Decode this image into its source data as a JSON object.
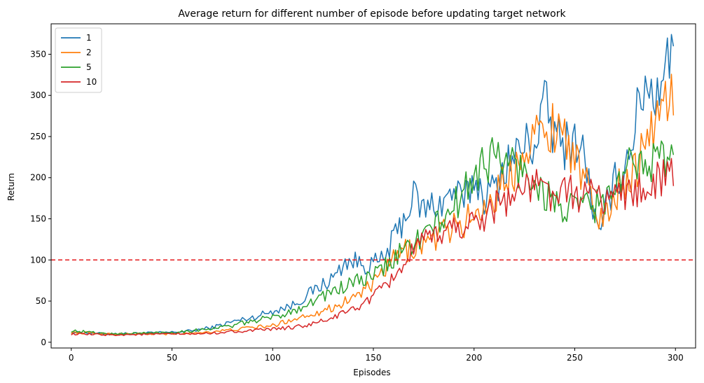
{
  "chart_data": {
    "type": "line",
    "title": "Average return for different number of episode before updating target network",
    "xlabel": "Episodes",
    "ylabel": "Return",
    "xlim": [
      -10,
      310
    ],
    "ylim": [
      -7,
      387
    ],
    "xticks": [
      0,
      50,
      100,
      150,
      200,
      250,
      300
    ],
    "yticks": [
      0,
      50,
      100,
      150,
      200,
      250,
      300,
      350
    ],
    "grid": false,
    "legend_position": "top-left",
    "reference_line": {
      "y": 100,
      "color": "#e41a1c",
      "style": "dashed"
    },
    "episodes": {
      "start": 0,
      "end": 299,
      "step": 1
    },
    "series": [
      {
        "name": "1",
        "color": "#1f77b4",
        "anchors": [
          [
            0,
            12
          ],
          [
            20,
            10
          ],
          [
            35,
            11
          ],
          [
            50,
            12
          ],
          [
            60,
            14
          ],
          [
            70,
            18
          ],
          [
            80,
            25
          ],
          [
            90,
            30
          ],
          [
            100,
            38
          ],
          [
            110,
            45
          ],
          [
            120,
            62
          ],
          [
            130,
            78
          ],
          [
            137,
            100
          ],
          [
            145,
            95
          ],
          [
            150,
            95
          ],
          [
            155,
            100
          ],
          [
            160,
            125
          ],
          [
            165,
            150
          ],
          [
            170,
            178
          ],
          [
            175,
            160
          ],
          [
            180,
            168
          ],
          [
            185,
            170
          ],
          [
            190,
            185
          ],
          [
            195,
            168
          ],
          [
            200,
            200
          ],
          [
            205,
            178
          ],
          [
            210,
            185
          ],
          [
            215,
            215
          ],
          [
            220,
            225
          ],
          [
            225,
            240
          ],
          [
            230,
            240
          ],
          [
            235,
            290
          ],
          [
            240,
            250
          ],
          [
            245,
            240
          ],
          [
            250,
            250
          ],
          [
            255,
            225
          ],
          [
            260,
            150
          ],
          [
            263,
            125
          ],
          [
            266,
            170
          ],
          [
            270,
            195
          ],
          [
            275,
            215
          ],
          [
            280,
            265
          ],
          [
            285,
            320
          ],
          [
            290,
            300
          ],
          [
            295,
            350
          ],
          [
            299,
            338
          ]
        ]
      },
      {
        "name": "2",
        "color": "#ff7f0e",
        "anchors": [
          [
            0,
            12
          ],
          [
            20,
            10
          ],
          [
            50,
            10
          ],
          [
            60,
            11
          ],
          [
            70,
            13
          ],
          [
            80,
            15
          ],
          [
            90,
            18
          ],
          [
            100,
            20
          ],
          [
            110,
            28
          ],
          [
            120,
            35
          ],
          [
            130,
            42
          ],
          [
            140,
            55
          ],
          [
            150,
            70
          ],
          [
            155,
            85
          ],
          [
            160,
            100
          ],
          [
            165,
            110
          ],
          [
            170,
            115
          ],
          [
            175,
            120
          ],
          [
            180,
            125
          ],
          [
            185,
            135
          ],
          [
            190,
            140
          ],
          [
            195,
            145
          ],
          [
            200,
            155
          ],
          [
            205,
            165
          ],
          [
            210,
            175
          ],
          [
            215,
            195
          ],
          [
            220,
            210
          ],
          [
            225,
            245
          ],
          [
            230,
            255
          ],
          [
            235,
            250
          ],
          [
            240,
            265
          ],
          [
            245,
            260
          ],
          [
            250,
            220
          ],
          [
            255,
            195
          ],
          [
            260,
            160
          ],
          [
            265,
            150
          ],
          [
            270,
            180
          ],
          [
            275,
            200
          ],
          [
            280,
            210
          ],
          [
            285,
            240
          ],
          [
            290,
            270
          ],
          [
            295,
            300
          ],
          [
            299,
            296
          ]
        ]
      },
      {
        "name": "5",
        "color": "#2ca02c",
        "anchors": [
          [
            0,
            14
          ],
          [
            20,
            10
          ],
          [
            50,
            12
          ],
          [
            60,
            14
          ],
          [
            70,
            17
          ],
          [
            80,
            20
          ],
          [
            90,
            26
          ],
          [
            100,
            30
          ],
          [
            110,
            38
          ],
          [
            120,
            50
          ],
          [
            130,
            62
          ],
          [
            140,
            72
          ],
          [
            150,
            80
          ],
          [
            155,
            90
          ],
          [
            160,
            100
          ],
          [
            165,
            112
          ],
          [
            170,
            122
          ],
          [
            175,
            130
          ],
          [
            180,
            140
          ],
          [
            185,
            150
          ],
          [
            190,
            165
          ],
          [
            195,
            180
          ],
          [
            200,
            205
          ],
          [
            205,
            220
          ],
          [
            210,
            225
          ],
          [
            215,
            220
          ],
          [
            220,
            215
          ],
          [
            225,
            205
          ],
          [
            230,
            200
          ],
          [
            235,
            180
          ],
          [
            240,
            170
          ],
          [
            245,
            160
          ],
          [
            250,
            160
          ],
          [
            255,
            170
          ],
          [
            260,
            165
          ],
          [
            265,
            175
          ],
          [
            270,
            180
          ],
          [
            275,
            205
          ],
          [
            280,
            220
          ],
          [
            285,
            235
          ],
          [
            290,
            215
          ],
          [
            295,
            230
          ],
          [
            299,
            215
          ]
        ]
      },
      {
        "name": "10",
        "color": "#d62728",
        "anchors": [
          [
            0,
            10
          ],
          [
            20,
            9
          ],
          [
            50,
            10
          ],
          [
            60,
            10
          ],
          [
            70,
            11
          ],
          [
            80,
            13
          ],
          [
            90,
            14
          ],
          [
            100,
            16
          ],
          [
            110,
            18
          ],
          [
            120,
            22
          ],
          [
            130,
            30
          ],
          [
            140,
            40
          ],
          [
            150,
            55
          ],
          [
            155,
            65
          ],
          [
            160,
            80
          ],
          [
            165,
            95
          ],
          [
            170,
            110
          ],
          [
            175,
            120
          ],
          [
            180,
            128
          ],
          [
            185,
            135
          ],
          [
            190,
            140
          ],
          [
            195,
            142
          ],
          [
            200,
            145
          ],
          [
            205,
            155
          ],
          [
            210,
            165
          ],
          [
            215,
            175
          ],
          [
            220,
            180
          ],
          [
            225,
            185
          ],
          [
            230,
            190
          ],
          [
            235,
            185
          ],
          [
            240,
            180
          ],
          [
            245,
            178
          ],
          [
            250,
            182
          ],
          [
            255,
            180
          ],
          [
            260,
            178
          ],
          [
            265,
            175
          ],
          [
            270,
            180
          ],
          [
            275,
            185
          ],
          [
            280,
            180
          ],
          [
            285,
            190
          ],
          [
            290,
            195
          ],
          [
            295,
            200
          ],
          [
            299,
            205
          ]
        ]
      }
    ]
  }
}
